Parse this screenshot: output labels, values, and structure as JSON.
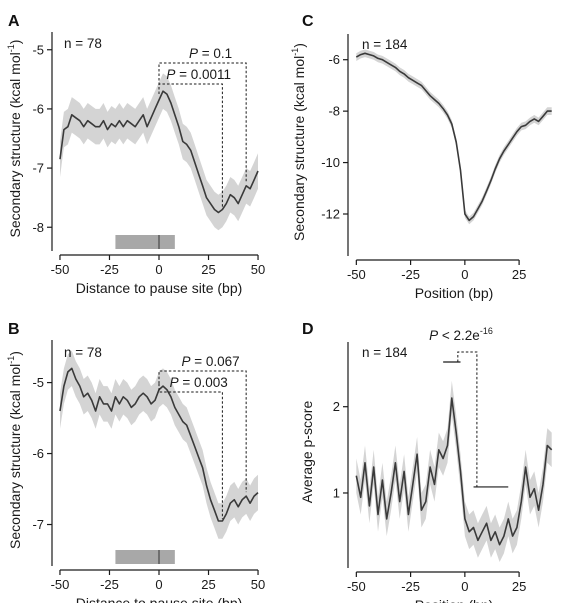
{
  "chart_data": [
    {
      "panel": "A",
      "type": "line",
      "n_label": "n = 78",
      "xlabel": "Distance to pause site (bp)",
      "ylabel": "Secondary structure (kcal mol",
      "ylabel_sup": "-1",
      "ylabel_close": ")",
      "xlim": [
        -52,
        52
      ],
      "ylim": [
        -8.3,
        -4.7
      ],
      "xticks": [
        -50,
        -25,
        0,
        25,
        50
      ],
      "yticks": [
        -5,
        -6,
        -7,
        -8
      ],
      "pause_box": [
        -22,
        8
      ],
      "x": [
        -50,
        -48,
        -46,
        -44,
        -42,
        -40,
        -38,
        -36,
        -34,
        -32,
        -30,
        -28,
        -26,
        -24,
        -22,
        -20,
        -18,
        -16,
        -14,
        -12,
        -10,
        -8,
        -6,
        -4,
        -2,
        0,
        2,
        4,
        6,
        8,
        10,
        12,
        14,
        16,
        18,
        20,
        22,
        24,
        26,
        28,
        30,
        32,
        34,
        36,
        38,
        40,
        42,
        44,
        46,
        48,
        50
      ],
      "mean": [
        -6.85,
        -6.35,
        -6.3,
        -6.1,
        -6.15,
        -6.2,
        -6.3,
        -6.2,
        -6.25,
        -6.3,
        -6.3,
        -6.2,
        -6.35,
        -6.25,
        -6.3,
        -6.2,
        -6.3,
        -6.2,
        -6.25,
        -6.3,
        -6.2,
        -6.1,
        -6.3,
        -6.15,
        -6.0,
        -5.85,
        -5.7,
        -5.75,
        -5.9,
        -6.1,
        -6.3,
        -6.55,
        -6.6,
        -6.7,
        -6.9,
        -7.1,
        -7.3,
        -7.5,
        -7.6,
        -7.7,
        -7.75,
        -7.7,
        -7.6,
        -7.45,
        -7.5,
        -7.6,
        -7.45,
        -7.3,
        -7.35,
        -7.2,
        -7.05
      ],
      "band_half_width": 0.3,
      "annotations": [
        {
          "text": "P = 0.1",
          "left_x": 0,
          "right_x": 44
        },
        {
          "text": "P = 0.0011",
          "left_x": 0,
          "right_x": 32
        }
      ]
    },
    {
      "panel": "B",
      "type": "line",
      "n_label": "n = 78",
      "xlabel": "Distance to pause site (bp)",
      "ylabel": "Secondary structure (kcal mol",
      "ylabel_sup": "-1",
      "ylabel_close": ")",
      "xlim": [
        -52,
        52
      ],
      "ylim": [
        -7.5,
        -4.4
      ],
      "xticks": [
        -50,
        -25,
        0,
        25,
        50
      ],
      "yticks": [
        -5,
        -6,
        -7
      ],
      "pause_box": [
        -22,
        8
      ],
      "x": [
        -50,
        -48,
        -46,
        -44,
        -42,
        -40,
        -38,
        -36,
        -34,
        -32,
        -30,
        -28,
        -26,
        -24,
        -22,
        -20,
        -18,
        -16,
        -14,
        -12,
        -10,
        -8,
        -6,
        -4,
        -2,
        0,
        2,
        4,
        6,
        8,
        10,
        12,
        14,
        16,
        18,
        20,
        22,
        24,
        26,
        28,
        30,
        32,
        34,
        36,
        38,
        40,
        42,
        44,
        46,
        48,
        50
      ],
      "mean": [
        -5.4,
        -5.05,
        -4.85,
        -4.8,
        -4.95,
        -5.05,
        -5.2,
        -5.15,
        -5.25,
        -5.4,
        -5.2,
        -5.3,
        -5.3,
        -5.4,
        -5.2,
        -5.3,
        -5.2,
        -5.25,
        -5.35,
        -5.3,
        -5.2,
        -5.15,
        -5.2,
        -5.3,
        -5.25,
        -5.1,
        -5.05,
        -5.1,
        -5.2,
        -5.35,
        -5.45,
        -5.55,
        -5.6,
        -5.75,
        -5.9,
        -6.05,
        -6.2,
        -6.45,
        -6.65,
        -6.8,
        -6.95,
        -6.95,
        -6.85,
        -6.7,
        -6.65,
        -6.75,
        -6.65,
        -6.6,
        -6.7,
        -6.6,
        -6.55
      ],
      "band_half_width": 0.25,
      "annotations": [
        {
          "text": "P = 0.067",
          "left_x": 0,
          "right_x": 44
        },
        {
          "text": "P = 0.003",
          "left_x": 0,
          "right_x": 32
        }
      ]
    },
    {
      "panel": "C",
      "type": "line",
      "n_label": "n = 184",
      "xlabel": "Position (bp)",
      "ylabel": "Secondary structure (kcal mol",
      "ylabel_sup": "-1",
      "ylabel_close": ")",
      "xlim": [
        -52,
        42
      ],
      "ylim": [
        -13.4,
        -5.0
      ],
      "xticks": [
        -50,
        -25,
        0,
        25
      ],
      "yticks": [
        -6,
        -8,
        -10,
        -12
      ],
      "x": [
        -50,
        -48,
        -46,
        -44,
        -42,
        -40,
        -38,
        -36,
        -34,
        -32,
        -30,
        -28,
        -26,
        -24,
        -22,
        -20,
        -18,
        -16,
        -14,
        -12,
        -10,
        -8,
        -6,
        -4,
        -2,
        0,
        2,
        4,
        6,
        8,
        10,
        12,
        14,
        16,
        18,
        20,
        22,
        24,
        26,
        28,
        30,
        32,
        34,
        36,
        38,
        40
      ],
      "mean": [
        -5.9,
        -5.8,
        -5.75,
        -5.8,
        -5.85,
        -5.95,
        -6.0,
        -6.1,
        -6.2,
        -6.3,
        -6.45,
        -6.55,
        -6.7,
        -6.8,
        -6.9,
        -7.0,
        -7.2,
        -7.4,
        -7.55,
        -7.7,
        -7.9,
        -8.15,
        -8.5,
        -9.2,
        -10.3,
        -12.0,
        -12.25,
        -12.1,
        -11.8,
        -11.5,
        -11.1,
        -10.7,
        -10.25,
        -9.85,
        -9.55,
        -9.3,
        -9.05,
        -8.8,
        -8.6,
        -8.55,
        -8.4,
        -8.3,
        -8.4,
        -8.2,
        -8.0,
        -8.0
      ],
      "band_half_width": 0.15
    },
    {
      "panel": "D",
      "type": "line",
      "n_label": "n = 184",
      "xlabel": "Position (bp)",
      "ylabel": "Average p-score",
      "xlim": [
        -52,
        42
      ],
      "ylim": [
        0.2,
        2.75
      ],
      "xticks": [
        -50,
        -25,
        0,
        25
      ],
      "yticks": [
        1,
        2
      ],
      "x": [
        -50,
        -48,
        -46,
        -44,
        -42,
        -40,
        -38,
        -36,
        -34,
        -32,
        -30,
        -28,
        -26,
        -24,
        -22,
        -20,
        -18,
        -16,
        -14,
        -12,
        -10,
        -8,
        -6,
        -4,
        -2,
        0,
        2,
        4,
        6,
        8,
        10,
        12,
        14,
        16,
        18,
        20,
        22,
        24,
        26,
        28,
        30,
        32,
        34,
        36,
        38,
        40
      ],
      "mean": [
        1.2,
        0.95,
        1.35,
        0.85,
        1.3,
        0.75,
        1.15,
        0.7,
        1.0,
        1.35,
        0.9,
        1.25,
        0.75,
        1.1,
        1.45,
        0.8,
        0.9,
        1.3,
        1.1,
        1.5,
        1.4,
        1.55,
        2.1,
        1.7,
        1.25,
        0.7,
        0.55,
        0.6,
        0.45,
        0.55,
        0.65,
        0.45,
        0.55,
        0.4,
        0.5,
        0.7,
        0.5,
        0.6,
        0.9,
        1.3,
        0.95,
        1.05,
        0.8,
        1.1,
        1.55,
        1.5
      ],
      "band_half_width": 0.2,
      "annotations": [
        {
          "text": "P < 2.2e",
          "sup": "-16",
          "left_range": [
            -10,
            -2
          ],
          "right_range": [
            4,
            20
          ]
        }
      ]
    }
  ]
}
